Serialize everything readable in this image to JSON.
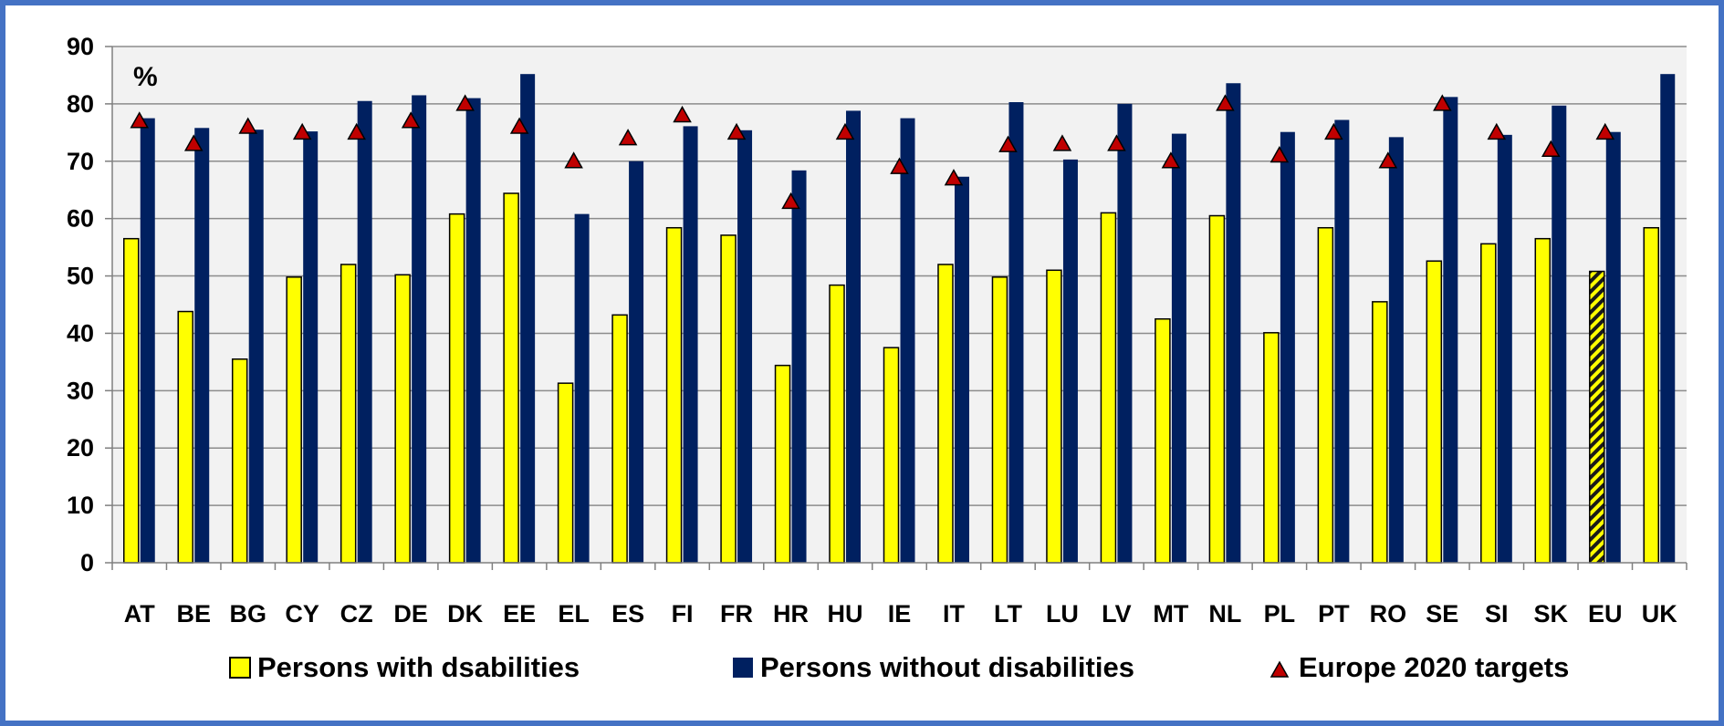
{
  "chart_data": {
    "type": "bar",
    "title": "",
    "unit_label": "%",
    "xlabel": "",
    "ylabel": "",
    "ylim": [
      0,
      90
    ],
    "ytick_step": 10,
    "grid": true,
    "legend_position": "bottom",
    "categories": [
      "AT",
      "BE",
      "BG",
      "CY",
      "CZ",
      "DE",
      "DK",
      "EE",
      "EL",
      "ES",
      "FI",
      "FR",
      "HR",
      "HU",
      "IE",
      "IT",
      "LT",
      "LU",
      "LV",
      "MT",
      "NL",
      "PL",
      "PT",
      "RO",
      "SE",
      "SI",
      "SK",
      "EU",
      "UK"
    ],
    "highlight_category": "EU",
    "series": [
      {
        "name": "Persons with dsabilities",
        "kind": "bar",
        "color": "#ffff00",
        "values": [
          56.5,
          43.8,
          35.5,
          49.8,
          52.0,
          50.2,
          60.8,
          64.4,
          31.3,
          43.2,
          58.4,
          57.1,
          34.4,
          48.4,
          37.5,
          52.0,
          49.8,
          51.0,
          61.0,
          42.5,
          60.5,
          40.1,
          58.4,
          45.5,
          52.6,
          55.6,
          56.5,
          50.8,
          58.4
        ]
      },
      {
        "name": "Persons without disabilities",
        "kind": "bar",
        "color": "#002060",
        "values": [
          77.5,
          75.8,
          75.5,
          75.2,
          80.5,
          81.5,
          81.0,
          85.2,
          60.8,
          70.0,
          76.1,
          75.4,
          68.4,
          78.8,
          77.5,
          67.3,
          80.3,
          70.3,
          80.0,
          74.8,
          83.6,
          75.1,
          77.2,
          74.2,
          81.2,
          74.6,
          79.7,
          75.1,
          85.2
        ]
      },
      {
        "name": "Europe 2020 targets",
        "kind": "marker",
        "color": "#c00000",
        "values": [
          77,
          73,
          76,
          75,
          75,
          77,
          80,
          76,
          70,
          74,
          78,
          75,
          62.9,
          75,
          69,
          67,
          72.8,
          73,
          73,
          70,
          80,
          71,
          75,
          70,
          80,
          75,
          72,
          75,
          null
        ]
      }
    ]
  }
}
